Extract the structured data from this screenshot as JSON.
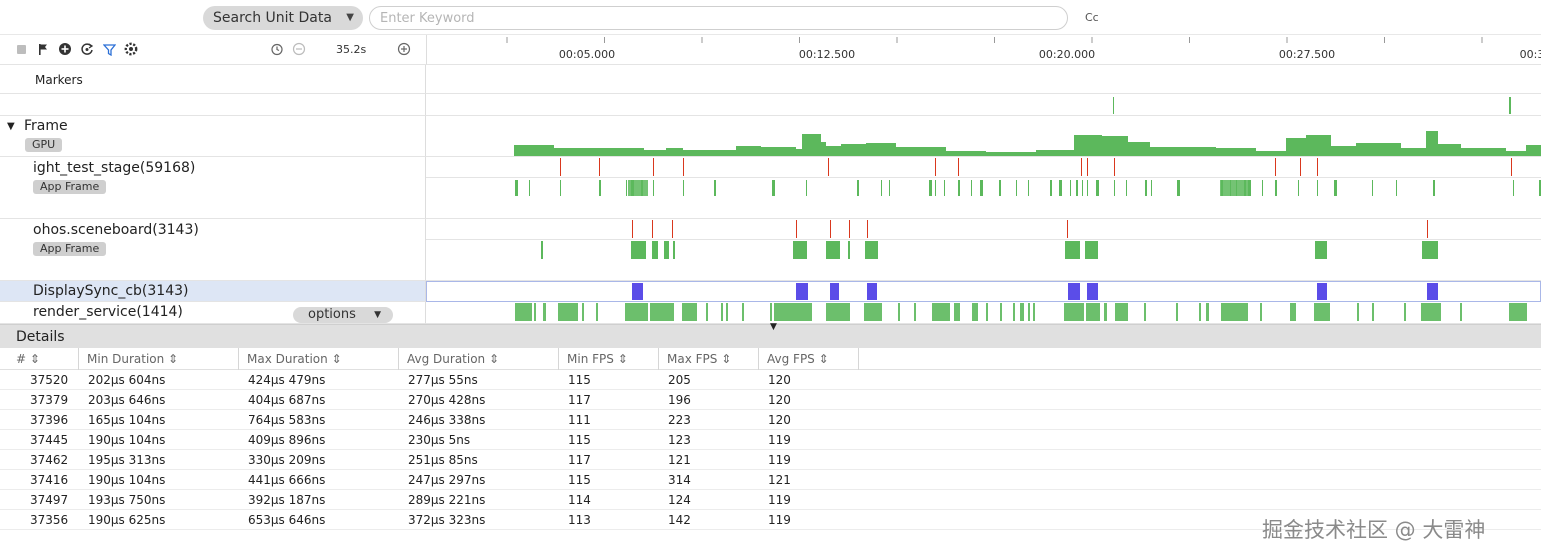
{
  "search": {
    "selector_label": "Search Unit Data",
    "placeholder": "Enter Keyword",
    "cc_label": "Cc"
  },
  "toolbar": {
    "icons": [
      "stop-icon",
      "flag-icon",
      "add-circle-icon",
      "refresh-icon",
      "filter-icon",
      "settings-icon"
    ],
    "duration": "35.2s"
  },
  "timeline": {
    "ticks": [
      "00:05.000",
      "00:12.500",
      "00:20.000",
      "00:27.500",
      "00:3"
    ]
  },
  "tracks": {
    "markers": {
      "label": "Markers"
    },
    "frame": {
      "label": "Frame",
      "tag": "GPU"
    },
    "process1": {
      "label": "ight_test_stage(59168)",
      "tag": "App Frame"
    },
    "process2": {
      "label": "ohos.sceneboard(3143)",
      "tag": "App Frame"
    },
    "displaysync": {
      "label": "DisplaySync_cb(3143)"
    },
    "render": {
      "label": "render_service(1414)"
    },
    "options_label": "options"
  },
  "details": {
    "title": "Details",
    "columns": [
      "#",
      "Min Duration",
      "Max Duration",
      "Avg Duration",
      "Min FPS",
      "Max FPS",
      "Avg FPS"
    ],
    "rows": [
      [
        "37520",
        "202μs 604ns",
        "424μs 479ns",
        "277μs 55ns",
        "115",
        "205",
        "120"
      ],
      [
        "37379",
        "203μs 646ns",
        "404μs 687ns",
        "270μs 428ns",
        "117",
        "196",
        "120"
      ],
      [
        "37396",
        "165μs 104ns",
        "764μs 583ns",
        "246μs 338ns",
        "111",
        "223",
        "120"
      ],
      [
        "37445",
        "190μs 104ns",
        "409μs 896ns",
        "230μs 5ns",
        "115",
        "123",
        "119"
      ],
      [
        "37462",
        "195μs 313ns",
        "330μs 209ns",
        "251μs 85ns",
        "117",
        "121",
        "119"
      ],
      [
        "37416",
        "190μs 104ns",
        "441μs 666ns",
        "247μs 297ns",
        "115",
        "314",
        "121"
      ],
      [
        "37497",
        "193μs 750ns",
        "392μs 187ns",
        "289μs 221ns",
        "114",
        "124",
        "119"
      ],
      [
        "37356",
        "190μs 625ns",
        "653μs 646ns",
        "372μs 323ns",
        "113",
        "142",
        "119"
      ]
    ]
  },
  "watermark": "掘金技术社区 @ 大雷神",
  "colors": {
    "green": "#5cb85c",
    "red": "#d9381e",
    "blue": "#5b4de8"
  }
}
